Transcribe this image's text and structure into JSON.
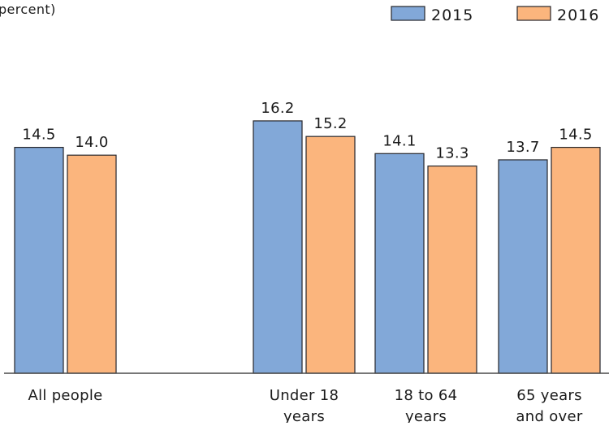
{
  "chart_data": {
    "type": "bar",
    "visible_text_fragment": "percent)",
    "categories": [
      [
        "All people"
      ],
      [
        "Under 18",
        "years"
      ],
      [
        "18 to 64",
        "years"
      ],
      [
        "65 years",
        "and over"
      ]
    ],
    "series": [
      {
        "name": "2015",
        "color": "#82a8d8",
        "values": [
          14.5,
          16.2,
          14.1,
          13.7
        ],
        "value_labels": [
          "14.5",
          "16.2",
          "14.1",
          "13.7"
        ]
      },
      {
        "name": "2016",
        "color": "#fbb57d",
        "values": [
          14.0,
          15.2,
          13.3,
          14.5
        ],
        "value_labels": [
          "14.0",
          "15.2",
          "13.3",
          "14.5"
        ]
      }
    ],
    "ylim": [
      0,
      20
    ],
    "grid": false,
    "legend_position": "top-right"
  }
}
